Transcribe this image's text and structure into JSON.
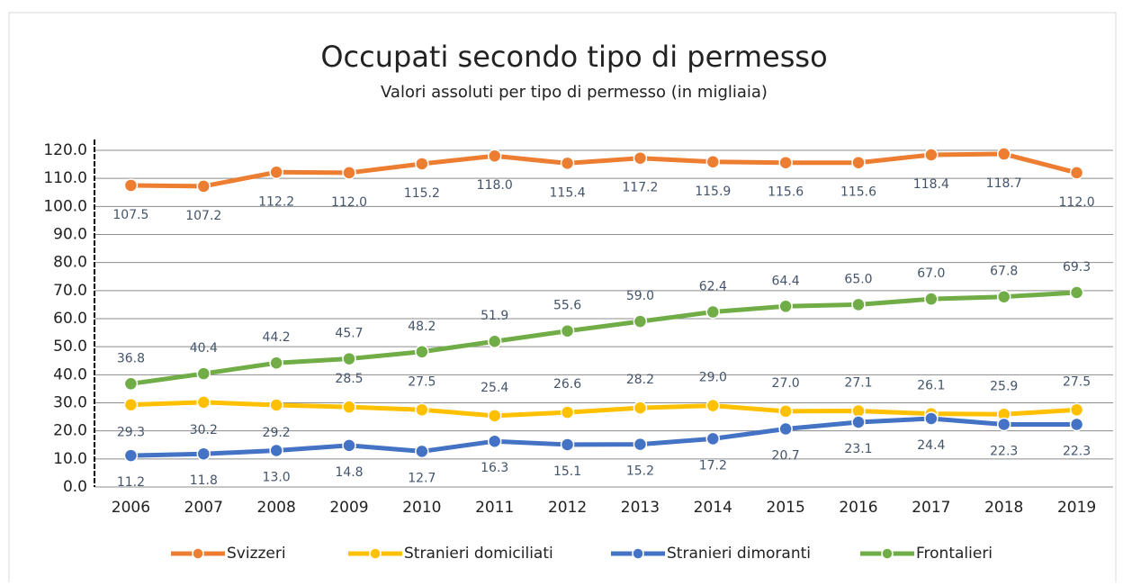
{
  "chart_data": {
    "type": "line",
    "title": "Occupati secondo tipo di permesso",
    "subtitle": "Valori assoluti per tipo di permesso (in migliaia)",
    "categories": [
      "2006",
      "2007",
      "2008",
      "2009",
      "2010",
      "2011",
      "2012",
      "2013",
      "2014",
      "2015",
      "2016",
      "2017",
      "2018",
      "2019"
    ],
    "series": [
      {
        "name": "Svizzeri",
        "color": "#ed7d31",
        "values": [
          107.5,
          107.2,
          112.2,
          112.0,
          115.2,
          118.0,
          115.4,
          117.2,
          115.9,
          115.6,
          115.6,
          118.4,
          118.7,
          112.0
        ],
        "value_labels": [
          "107.5",
          "107.2",
          "112.2",
          "112.0",
          "115.2",
          "118.0",
          "115.4",
          "117.2",
          "115.9",
          "115.6",
          "115.6",
          "118.4",
          "118.7",
          "112.0"
        ]
      },
      {
        "name": "Stranieri domiciliati",
        "color": "#ffc000",
        "values": [
          29.3,
          30.2,
          29.2,
          28.5,
          27.5,
          25.4,
          26.6,
          28.2,
          29.0,
          27.0,
          27.1,
          26.1,
          25.9,
          27.5
        ],
        "value_labels": [
          "29.3",
          "30.2",
          "29.2",
          "28.5",
          "27.5",
          "25.4",
          "26.6",
          "28.2",
          "29.0",
          "27.0",
          "27.1",
          "26.1",
          "25.9",
          "27.5"
        ]
      },
      {
        "name": "Stranieri dimoranti",
        "color": "#4472c4",
        "values": [
          11.2,
          11.8,
          13.0,
          14.8,
          12.7,
          16.3,
          15.1,
          15.2,
          17.2,
          20.7,
          23.1,
          24.4,
          22.3,
          22.3
        ],
        "value_labels": [
          "11.2",
          "11.8",
          "13.0",
          "14.8",
          "12.7",
          "16.3",
          "15.1",
          "15.2",
          "17.2",
          "20.7",
          "23.1",
          "24.4",
          "22.3",
          "22.3"
        ]
      },
      {
        "name": "Frontalieri",
        "color": "#70ad47",
        "values": [
          36.8,
          40.4,
          44.2,
          45.7,
          48.2,
          51.9,
          55.6,
          59.0,
          62.4,
          64.4,
          65.0,
          67.0,
          67.8,
          69.3
        ],
        "value_labels": [
          "36.8",
          "40.4",
          "44.2",
          "45.7",
          "48.2",
          "51.9",
          "55.6",
          "59.0",
          "62.4",
          "64.4",
          "65.0",
          "67.0",
          "67.8",
          "69.3"
        ]
      }
    ],
    "ylim": [
      0,
      120
    ],
    "yticks": [
      {
        "value": 0,
        "label": "0.0"
      },
      {
        "value": 10,
        "label": "10.0"
      },
      {
        "value": 20,
        "label": "20.0"
      },
      {
        "value": 30,
        "label": "30.0"
      },
      {
        "value": 40,
        "label": "40.0"
      },
      {
        "value": 50,
        "label": "50.0"
      },
      {
        "value": 60,
        "label": "60.0"
      },
      {
        "value": 70,
        "label": "70.0"
      },
      {
        "value": 80,
        "label": "80.0"
      },
      {
        "value": 90,
        "label": "90.0"
      },
      {
        "value": 100,
        "label": "100.0"
      },
      {
        "value": 110,
        "label": "110.0"
      },
      {
        "value": 120,
        "label": "120.0"
      }
    ],
    "grid": true
  }
}
